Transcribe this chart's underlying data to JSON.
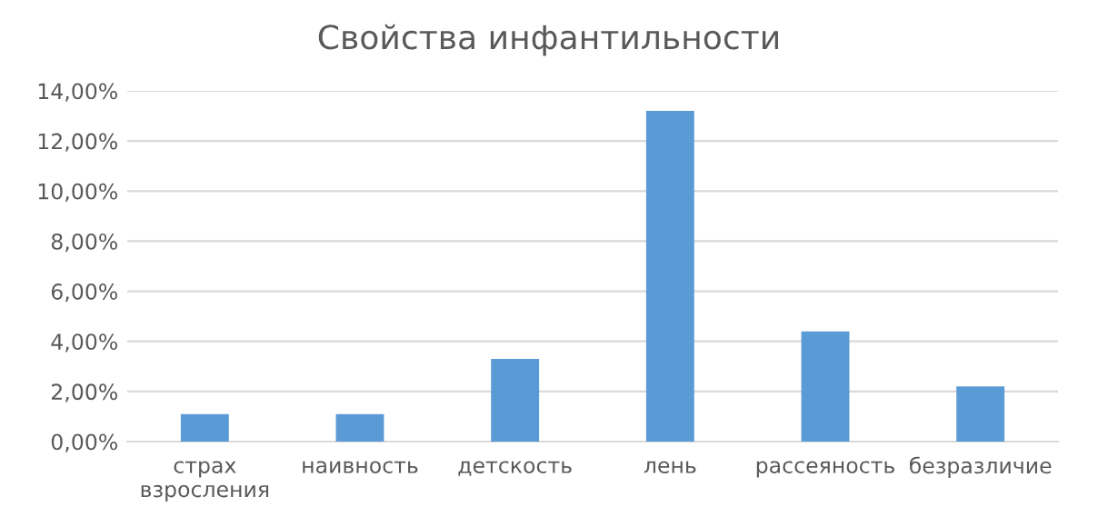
{
  "chart_data": {
    "type": "bar",
    "title": "Свойства инфантильности",
    "categories": [
      "страх\nвзросления",
      "наивность",
      "детскость",
      "лень",
      "рассеяность",
      "безразличие"
    ],
    "values": [
      1.1,
      1.1,
      3.3,
      13.2,
      4.4,
      2.2
    ],
    "color": "#5b9bd5",
    "ylim": [
      0,
      14
    ],
    "yticks": [
      {
        "value": 0,
        "label": "0,00%"
      },
      {
        "value": 2,
        "label": "2,00%"
      },
      {
        "value": 4,
        "label": "4,00%"
      },
      {
        "value": 6,
        "label": "6,00%"
      },
      {
        "value": 8,
        "label": "8,00%"
      },
      {
        "value": 10,
        "label": "10,00%"
      },
      {
        "value": 12,
        "label": "12,00%"
      },
      {
        "value": 14,
        "label": "14,00%"
      }
    ],
    "grid": "y",
    "legend": false
  }
}
